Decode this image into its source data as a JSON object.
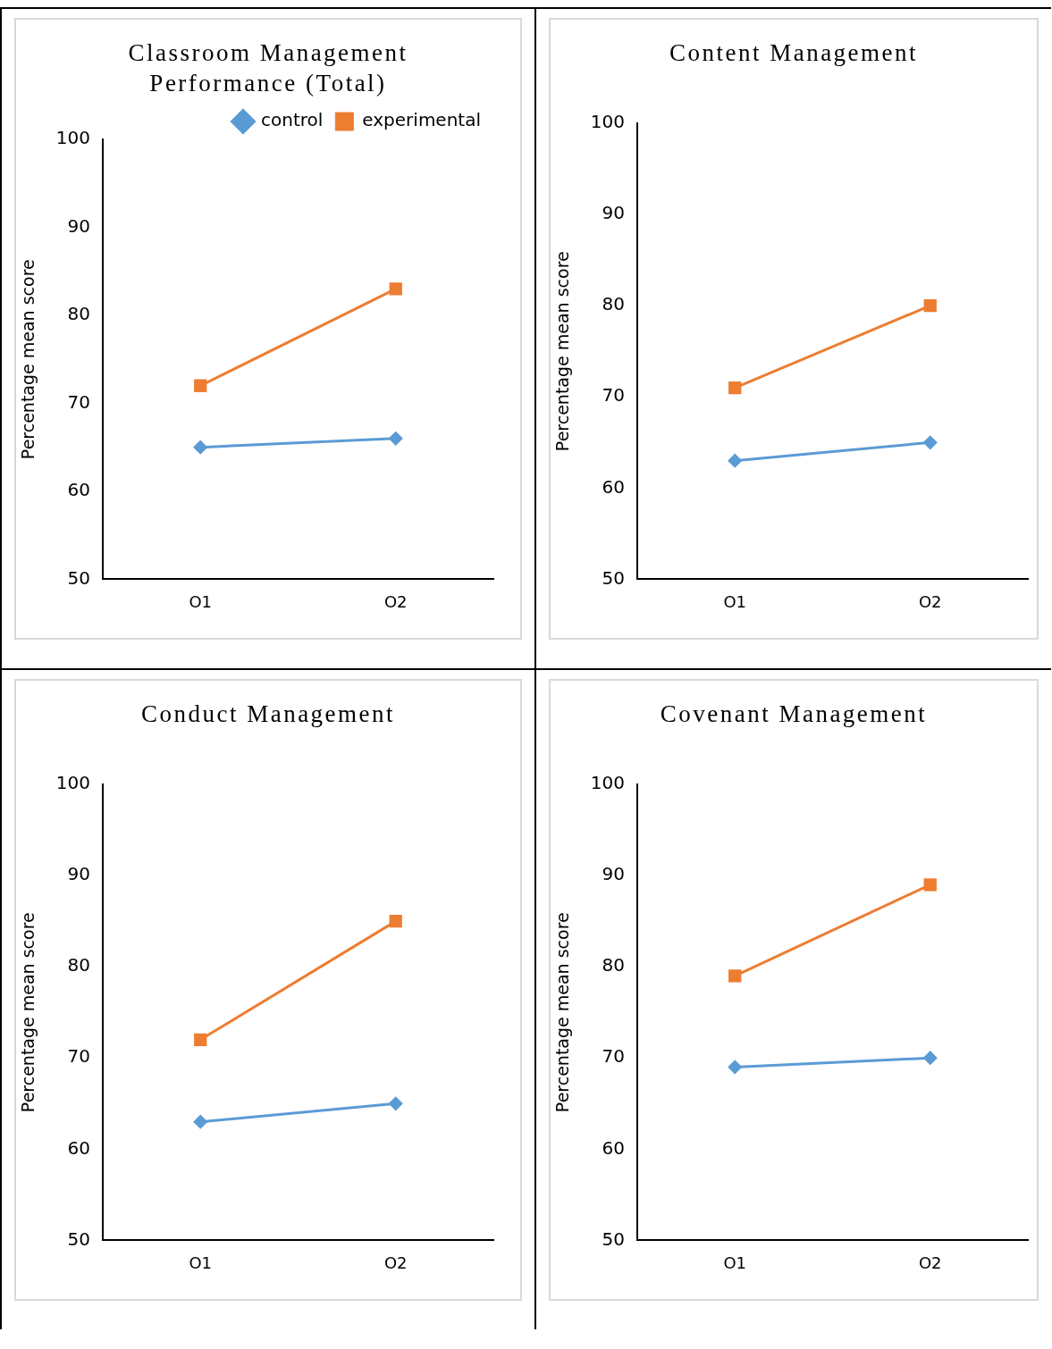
{
  "chart_data": [
    {
      "type": "line",
      "title": "Classroom Management Performance (Total)",
      "ylabel": "Percentage mean score",
      "categories": [
        "O1",
        "O2"
      ],
      "ylim": [
        50,
        100
      ],
      "yticks": [
        50,
        60,
        70,
        80,
        90,
        100
      ],
      "grid": false,
      "legend": "top right",
      "line_style": "solid",
      "series": [
        {
          "name": "control",
          "color": "#5b9bd5",
          "marker": "diamond",
          "values": [
            65,
            66
          ]
        },
        {
          "name": "experimental",
          "color": "#ed7d31",
          "marker": "square",
          "values": [
            72,
            83
          ]
        }
      ]
    },
    {
      "type": "line",
      "title": "Content Management",
      "ylabel": "Percentage mean score",
      "categories": [
        "O1",
        "O2"
      ],
      "ylim": [
        50,
        100
      ],
      "yticks": [
        50,
        60,
        70,
        80,
        90,
        100
      ],
      "grid": false,
      "legend": false,
      "line_style": "solid",
      "series": [
        {
          "color": "#5b9bd5",
          "marker": "diamond",
          "values": [
            63,
            65
          ]
        },
        {
          "color": "#ed7d31",
          "marker": "square",
          "values": [
            71,
            80
          ]
        }
      ]
    },
    {
      "type": "line",
      "title": "Conduct Management",
      "ylabel": "Percentage mean score",
      "categories": [
        "O1",
        "O2"
      ],
      "ylim": [
        50,
        100
      ],
      "yticks": [
        50,
        60,
        70,
        80,
        90,
        100
      ],
      "grid": false,
      "legend": false,
      "line_style": "solid",
      "series": [
        {
          "color": "#5b9bd5",
          "marker": "diamond",
          "values": [
            63,
            65
          ]
        },
        {
          "color": "#ed7d31",
          "marker": "square",
          "values": [
            72,
            85
          ]
        }
      ]
    },
    {
      "type": "line",
      "title": "Covenant Management",
      "ylabel": "Percentage mean score",
      "categories": [
        "O1",
        "O2"
      ],
      "ylim": [
        50,
        100
      ],
      "yticks": [
        50,
        60,
        70,
        80,
        90,
        100
      ],
      "grid": false,
      "legend": false,
      "line_style": "solid",
      "series": [
        {
          "color": "#5b9bd5",
          "marker": "diamond",
          "values": [
            69,
            70
          ]
        },
        {
          "color": "#ed7d31",
          "marker": "square",
          "values": [
            79,
            89
          ]
        }
      ]
    }
  ]
}
